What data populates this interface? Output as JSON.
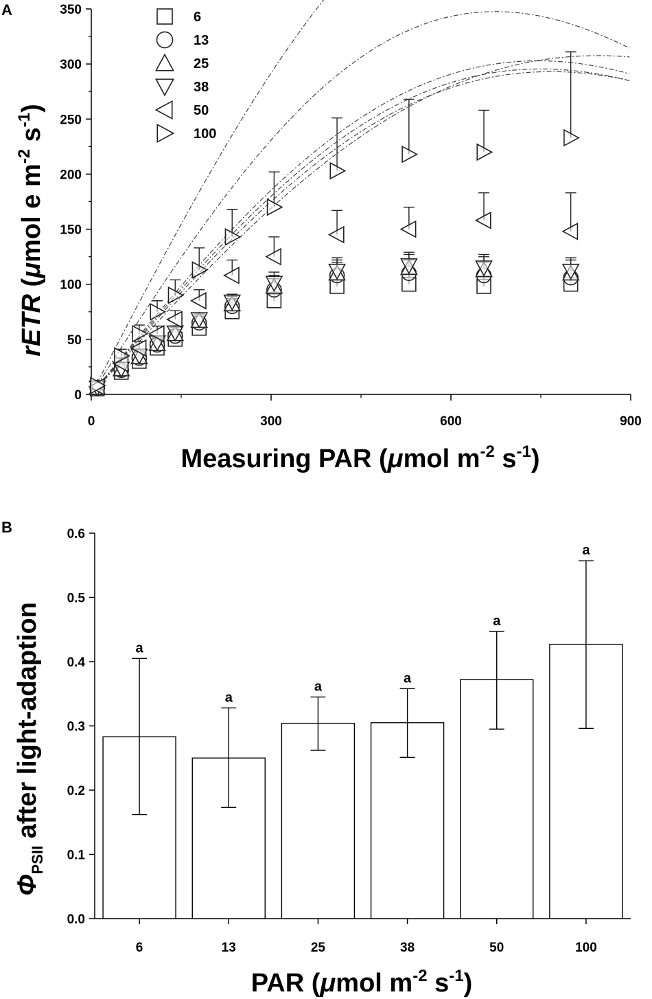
{
  "chart_data": [
    {
      "type": "scatter",
      "panel": "A",
      "xlabel_main": "Measuring PAR (",
      "xlabel_mu": "μ",
      "xlabel_mol": "mol m",
      "xlabel_exp1": "-2",
      "xlabel_s": " s",
      "xlabel_exp2": "-1",
      "xlabel_close": ")",
      "ylabel_main": "rETR",
      "ylabel_open": " (",
      "ylabel_mu": "μ",
      "ylabel_mid": "mol e m",
      "ylabel_exp1": "-2",
      "ylabel_s": " s",
      "ylabel_exp2": "-1",
      "ylabel_close": ")",
      "xlim": [
        0,
        900
      ],
      "ylim": [
        0,
        350
      ],
      "xticks": [
        "0",
        "300",
        "600",
        "900"
      ],
      "yticks": [
        "0",
        "50",
        "100",
        "150",
        "200",
        "250",
        "300",
        "350"
      ],
      "x": [
        10,
        50,
        80,
        110,
        140,
        180,
        235,
        305,
        410,
        530,
        655,
        800
      ],
      "series": [
        {
          "name": "6",
          "marker": "square",
          "values": [
            5,
            20,
            30,
            42,
            50,
            60,
            75,
            85,
            98,
            100,
            98,
            100
          ],
          "err": [
            3,
            4,
            5,
            5,
            6,
            6,
            7,
            8,
            10,
            10,
            10,
            10
          ],
          "fit": {
            "a": 0.6,
            "b": 7e-07
          }
        },
        {
          "name": "13",
          "marker": "circle",
          "values": [
            6,
            22,
            33,
            45,
            53,
            65,
            80,
            95,
            108,
            110,
            108,
            106
          ],
          "err": [
            3,
            4,
            5,
            5,
            6,
            6,
            7,
            10,
            12,
            12,
            12,
            12
          ],
          "fit": {
            "a": 0.63,
            "b": 8.5e-07
          }
        },
        {
          "name": "25",
          "marker": "triangle-up",
          "values": [
            6,
            23,
            34,
            46,
            55,
            67,
            82,
            98,
            110,
            115,
            113,
            110
          ],
          "err": [
            3,
            4,
            5,
            5,
            6,
            6,
            7,
            10,
            12,
            12,
            12,
            12
          ],
          "fit": {
            "a": 0.65,
            "b": 8.9e-07
          }
        },
        {
          "name": "38",
          "marker": "triangle-down",
          "values": [
            6,
            23,
            35,
            47,
            56,
            68,
            84,
            101,
            112,
            117,
            115,
            112
          ],
          "err": [
            3,
            4,
            5,
            5,
            6,
            6,
            7,
            10,
            12,
            12,
            12,
            12
          ],
          "fit": {
            "a": 0.67,
            "b": 9e-07
          }
        },
        {
          "name": "50",
          "marker": "triangle-left",
          "values": [
            7,
            28,
            42,
            55,
            68,
            85,
            108,
            125,
            145,
            150,
            158,
            148
          ],
          "err": [
            4,
            5,
            6,
            7,
            8,
            10,
            14,
            18,
            22,
            20,
            25,
            35
          ],
          "fit": {
            "a": 0.85,
            "b": 1.1e-06
          }
        },
        {
          "name": "100",
          "marker": "triangle-right",
          "values": [
            8,
            35,
            55,
            75,
            90,
            113,
            143,
            170,
            203,
            218,
            220,
            233
          ],
          "err": [
            4,
            6,
            8,
            10,
            14,
            20,
            25,
            32,
            48,
            50,
            38,
            78
          ],
          "fit": {
            "a": 1.05,
            "b": 8.5e-07
          }
        }
      ]
    },
    {
      "type": "bar",
      "panel": "B",
      "xlabel_main": "PAR (",
      "xlabel_mu": "μ",
      "xlabel_mol": "mol m",
      "xlabel_exp1": "-2",
      "xlabel_s": " s",
      "xlabel_exp2": "-1",
      "xlabel_close": ")",
      "ylabel_phi": "Φ",
      "ylabel_sub": "PSII",
      "ylabel_rest": " after light-adaption",
      "ylim": [
        0,
        0.6
      ],
      "yticks": [
        "0.0",
        "0.1",
        "0.2",
        "0.3",
        "0.4",
        "0.5",
        "0.6"
      ],
      "categories": [
        "6",
        "13",
        "25",
        "38",
        "50",
        "100"
      ],
      "values": [
        0.283,
        0.25,
        0.304,
        0.305,
        0.372,
        0.427
      ],
      "err_low": [
        0.162,
        0.173,
        0.262,
        0.251,
        0.295,
        0.296
      ],
      "err_high": [
        0.405,
        0.328,
        0.345,
        0.358,
        0.447,
        0.557
      ],
      "significance": [
        "a",
        "a",
        "a",
        "a",
        "a",
        "a"
      ]
    }
  ]
}
